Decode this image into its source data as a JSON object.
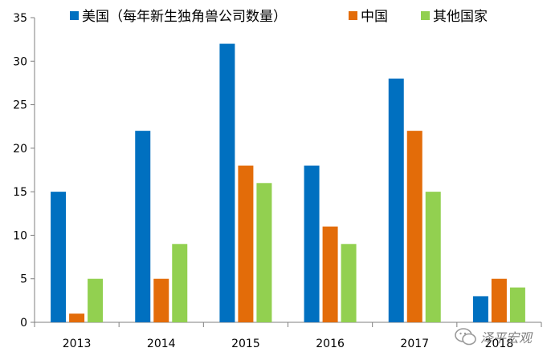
{
  "chart_data": {
    "type": "bar",
    "categories": [
      "2013",
      "2014",
      "2015",
      "2016",
      "2017",
      "2018"
    ],
    "series": [
      {
        "name": "美国（每年新生独角兽公司数量）",
        "color": "#0070c0",
        "values": [
          15,
          22,
          32,
          18,
          28,
          3
        ]
      },
      {
        "name": "中国",
        "color": "#e36c09",
        "values": [
          1,
          5,
          18,
          11,
          22,
          5
        ]
      },
      {
        "name": "其他国家",
        "color": "#92d050",
        "values": [
          5,
          9,
          16,
          9,
          15,
          4
        ]
      }
    ],
    "ylim": [
      0,
      35
    ],
    "yticks": [
      0,
      5,
      10,
      15,
      20,
      25,
      30,
      35
    ],
    "grid": false,
    "legend": "top"
  },
  "watermark": {
    "text": "泽平宏观",
    "icon": "wechat-icon"
  }
}
